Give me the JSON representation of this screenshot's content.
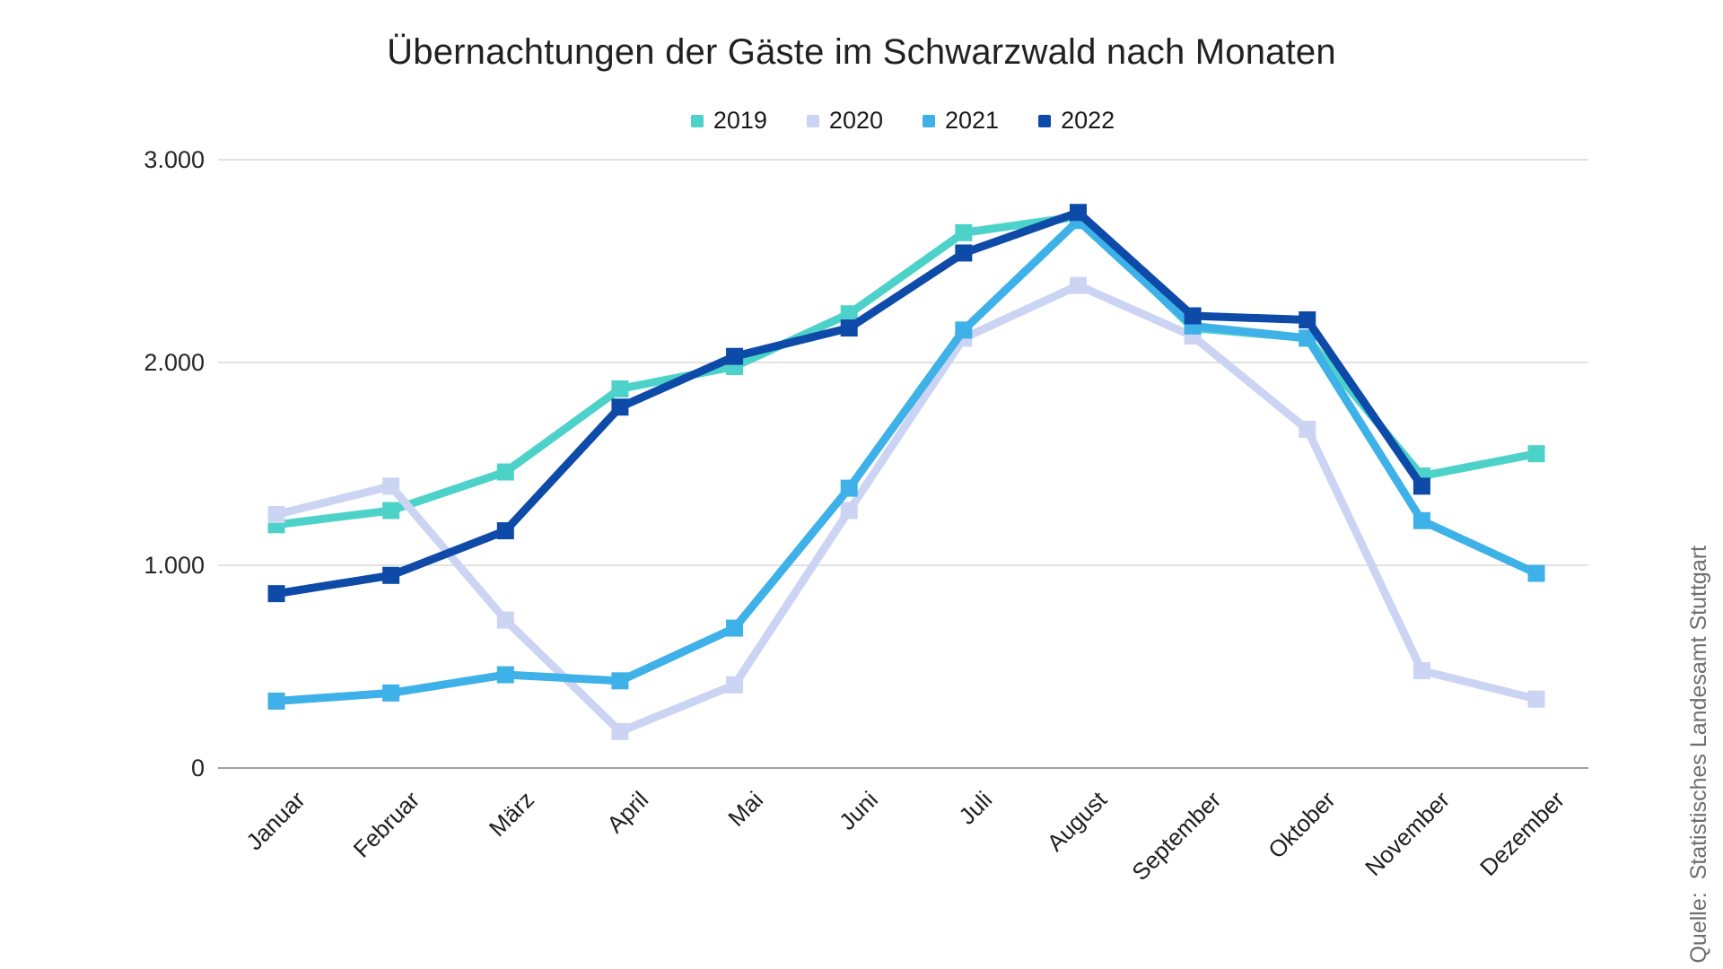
{
  "chart_data": {
    "type": "line",
    "title": "Übernachtungen der Gäste im Schwarzwald nach Monaten",
    "categories": [
      "Januar",
      "Februar",
      "März",
      "April",
      "Mai",
      "Juni",
      "Juli",
      "August",
      "September",
      "Oktober",
      "November",
      "Dezember"
    ],
    "series": [
      {
        "name": "2019",
        "color": "#4DD2CA",
        "values": [
          1200,
          1270,
          1460,
          1870,
          1980,
          2240,
          2640,
          2720,
          2170,
          2120,
          1440,
          1550
        ]
      },
      {
        "name": "2020",
        "color": "#CCD4F4",
        "values": [
          1250,
          1390,
          730,
          180,
          410,
          1270,
          2120,
          2380,
          2130,
          1670,
          480,
          340
        ]
      },
      {
        "name": "2021",
        "color": "#3EB1E8",
        "values": [
          330,
          370,
          460,
          430,
          690,
          1380,
          2160,
          2700,
          2180,
          2120,
          1220,
          960
        ]
      },
      {
        "name": "2022",
        "color": "#0E4AA8",
        "values": [
          860,
          950,
          1170,
          1780,
          2030,
          2170,
          2540,
          2740,
          2230,
          2210,
          1390,
          null
        ]
      }
    ],
    "y_axis": {
      "min": 0,
      "max": 3000,
      "tick_interval": 1000,
      "tick_labels": [
        "0",
        "1.000",
        "2.000",
        "3.000"
      ]
    },
    "legend_position": "top",
    "gridlines": "horizontal",
    "grid_color": "#d9d9d9",
    "axis_color": "#808080"
  },
  "source_note": "Quelle:  Statistisches Landesamt Stuttgart"
}
